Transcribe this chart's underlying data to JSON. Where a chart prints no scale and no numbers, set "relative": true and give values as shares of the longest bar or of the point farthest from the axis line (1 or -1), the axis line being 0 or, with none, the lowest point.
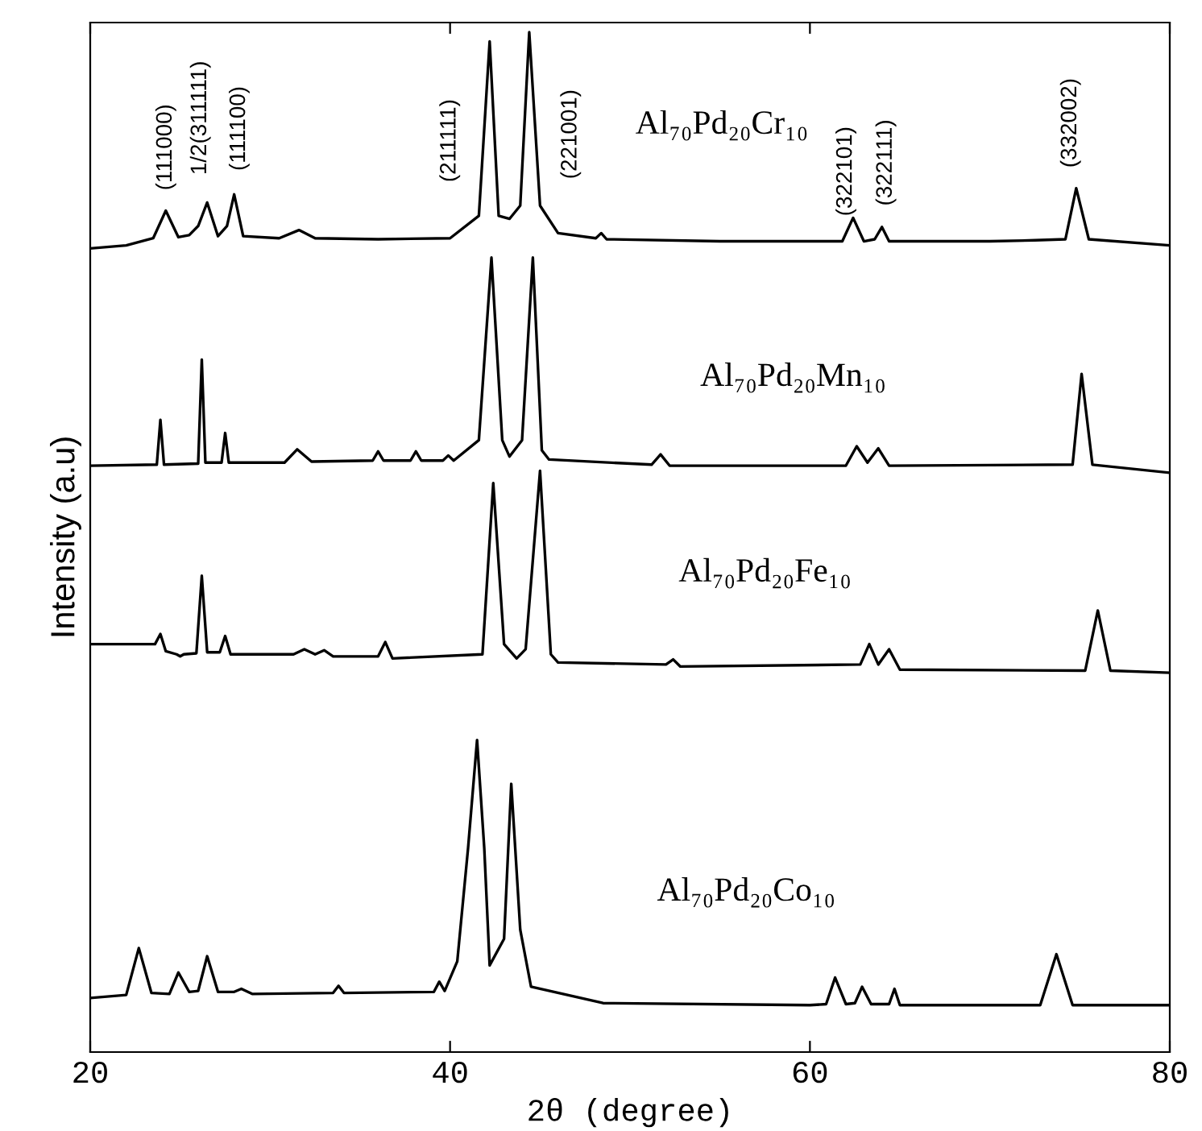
{
  "chart_data": {
    "type": "line",
    "xlabel": "2θ (degree)",
    "ylabel": "Intensity (a.u)",
    "relative": true,
    "xlim": [
      20,
      80
    ],
    "xticks": [
      20,
      40,
      60,
      80
    ],
    "grid": false,
    "legend": false,
    "marker": "none",
    "line_style": "solid",
    "series": [
      {
        "name": "Al₇₀Pd₂₀Cr₁₀",
        "color": "#000000",
        "x": [
          20,
          22,
          23.5,
          24.2,
          24.9,
          25.5,
          26.0,
          26.5,
          27.1,
          27.6,
          28.0,
          28.5,
          30.5,
          31.6,
          32.5,
          36,
          40,
          41.6,
          42.2,
          42.7,
          43.3,
          43.9,
          44.4,
          45.0,
          46,
          48.1,
          48.4,
          48.7,
          55,
          61.8,
          62.4,
          63.0,
          63.6,
          64.0,
          64.4,
          70,
          72.5,
          74.2,
          74.8,
          75.5,
          80
        ],
        "values": [
          0.788,
          0.791,
          0.798,
          0.825,
          0.799,
          0.801,
          0.81,
          0.833,
          0.8,
          0.81,
          0.841,
          0.8,
          0.798,
          0.806,
          0.798,
          0.797,
          0.798,
          0.82,
          0.991,
          0.82,
          0.817,
          0.83,
          1.0,
          0.83,
          0.803,
          0.798,
          0.803,
          0.797,
          0.795,
          0.795,
          0.818,
          0.795,
          0.797,
          0.809,
          0.795,
          0.795,
          0.796,
          0.797,
          0.847,
          0.797,
          0.791
        ]
      },
      {
        "name": "Al₇₀Pd₂₀Mn₁₀",
        "color": "#000000",
        "x": [
          20,
          23.7,
          23.9,
          24.1,
          26.0,
          26.2,
          26.4,
          27.3,
          27.5,
          27.7,
          30.8,
          31.5,
          32.3,
          35.7,
          36.0,
          36.3,
          37.8,
          38.1,
          38.4,
          39.6,
          39.9,
          40.2,
          41.6,
          42.3,
          42.9,
          43.3,
          44.0,
          44.6,
          45.1,
          45.5,
          51.2,
          51.7,
          52.2,
          62.0,
          62.6,
          63.2,
          63.8,
          64.4,
          74.6,
          75.1,
          75.7,
          80
        ],
        "values": [
          0.575,
          0.576,
          0.62,
          0.576,
          0.577,
          0.679,
          0.578,
          0.578,
          0.607,
          0.578,
          0.578,
          0.591,
          0.579,
          0.58,
          0.589,
          0.58,
          0.58,
          0.589,
          0.58,
          0.58,
          0.585,
          0.58,
          0.6,
          0.779,
          0.6,
          0.584,
          0.6,
          0.779,
          0.59,
          0.581,
          0.576,
          0.586,
          0.575,
          0.575,
          0.594,
          0.578,
          0.592,
          0.575,
          0.576,
          0.665,
          0.576,
          0.568
        ]
      },
      {
        "name": "Al₇₀Pd₂₀Fe₁₀",
        "color": "#000000",
        "x": [
          20,
          23.6,
          23.9,
          24.2,
          24.8,
          25.0,
          25.2,
          25.9,
          26.2,
          26.5,
          27.2,
          27.5,
          27.8,
          31.3,
          31.9,
          32.5,
          33.0,
          33.5,
          36.0,
          36.4,
          36.8,
          41.8,
          42.4,
          43.0,
          43.7,
          44.2,
          45.0,
          45.6,
          46,
          52.0,
          52.4,
          52.8,
          62.8,
          63.3,
          63.8,
          64.4,
          65.0,
          75.3,
          76.0,
          76.7,
          80
        ],
        "values": [
          0.4,
          0.4,
          0.41,
          0.393,
          0.39,
          0.388,
          0.39,
          0.391,
          0.467,
          0.392,
          0.392,
          0.408,
          0.39,
          0.39,
          0.395,
          0.39,
          0.394,
          0.388,
          0.388,
          0.402,
          0.386,
          0.39,
          0.558,
          0.4,
          0.386,
          0.395,
          0.57,
          0.39,
          0.382,
          0.38,
          0.385,
          0.378,
          0.38,
          0.4,
          0.38,
          0.395,
          0.375,
          0.374,
          0.433,
          0.374,
          0.372
        ]
      },
      {
        "name": "Al₇₀Pd₂₀Co₁₀",
        "color": "#000000",
        "x": [
          20,
          22.0,
          22.7,
          23.4,
          24.4,
          24.9,
          25.5,
          26.0,
          26.5,
          27.1,
          28.0,
          28.4,
          29.0,
          33.5,
          33.8,
          34.1,
          39.1,
          39.4,
          39.7,
          40.4,
          41.0,
          41.5,
          41.9,
          42.2,
          43.0,
          43.4,
          43.9,
          44.5,
          48.5,
          60,
          60.9,
          61.4,
          62.0,
          62.5,
          62.9,
          63.4,
          64.4,
          64.7,
          65.0,
          72.8,
          73.7,
          74.6,
          80
        ],
        "values": [
          0.053,
          0.056,
          0.102,
          0.058,
          0.057,
          0.078,
          0.059,
          0.06,
          0.094,
          0.059,
          0.059,
          0.062,
          0.057,
          0.058,
          0.065,
          0.058,
          0.059,
          0.069,
          0.06,
          0.089,
          0.2,
          0.306,
          0.2,
          0.085,
          0.111,
          0.263,
          0.12,
          0.064,
          0.048,
          0.046,
          0.047,
          0.073,
          0.047,
          0.048,
          0.064,
          0.047,
          0.047,
          0.062,
          0.046,
          0.046,
          0.096,
          0.046,
          0.046
        ]
      }
    ],
    "annotations": [
      "(111000)",
      "1/2(311111)",
      "(111100)",
      "(211111)",
      "(221001)",
      "(322101)",
      "(322111)",
      "(332002)"
    ]
  }
}
